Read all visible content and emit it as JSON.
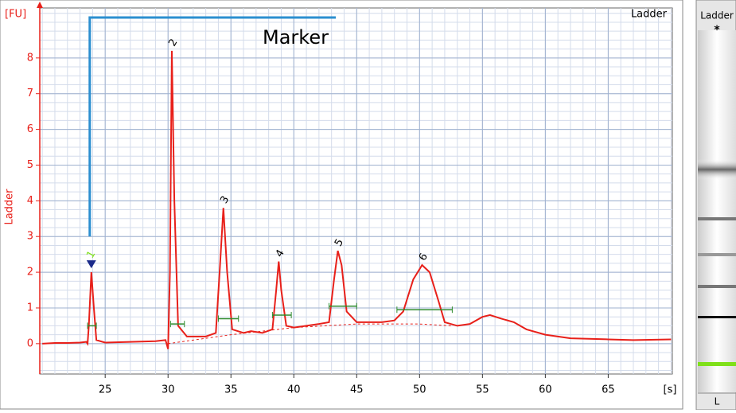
{
  "chart_data": {
    "type": "line",
    "title": "Ladder",
    "y_label": "Ladder",
    "y_unit": "[FU]",
    "x_unit": "[s]",
    "annotation": "Marker",
    "xlim": [
      19.8,
      70.1
    ],
    "ylim": [
      -0.85,
      9.4
    ],
    "xticks": [
      25,
      30,
      35,
      40,
      45,
      50,
      55,
      60,
      65
    ],
    "yticks": [
      0,
      1,
      2,
      3,
      4,
      5,
      6,
      7,
      8
    ],
    "grid": true,
    "color": "#e8201a",
    "x": [
      20,
      21,
      22,
      23,
      23.5,
      23.6,
      23.7,
      23.9,
      24.1,
      24.3,
      25,
      27,
      29,
      29.8,
      30.0,
      30.15,
      30.3,
      30.5,
      30.8,
      31.5,
      33,
      33.8,
      34.1,
      34.4,
      34.7,
      35.1,
      36,
      36.6,
      37.5,
      38.3,
      38.6,
      38.8,
      39.0,
      39.4,
      40,
      41,
      42,
      42.8,
      43.2,
      43.5,
      43.8,
      44.2,
      45,
      46,
      47,
      48,
      48.7,
      49.5,
      50.2,
      50.8,
      51.5,
      52,
      53,
      54,
      55,
      55.6,
      56.5,
      57.5,
      58.5,
      60,
      62,
      65,
      67,
      70
    ],
    "values": [
      0.0,
      0.02,
      0.02,
      0.03,
      0.05,
      0.0,
      0.5,
      2.0,
      1.0,
      0.1,
      0.03,
      0.05,
      0.07,
      0.1,
      -0.15,
      2,
      8.2,
      4,
      0.5,
      0.2,
      0.2,
      0.3,
      2.0,
      3.8,
      2.0,
      0.4,
      0.3,
      0.35,
      0.3,
      0.4,
      1.5,
      2.3,
      1.5,
      0.5,
      0.45,
      0.5,
      0.55,
      0.6,
      1.8,
      2.6,
      2.2,
      0.9,
      0.6,
      0.6,
      0.6,
      0.65,
      0.9,
      1.8,
      2.2,
      2.0,
      1.2,
      0.6,
      0.5,
      0.55,
      0.75,
      0.8,
      0.7,
      0.6,
      0.4,
      0.25,
      0.15,
      0.12,
      0.1,
      0.12
    ],
    "baseline": {
      "x": [
        30,
        35,
        40,
        45,
        50,
        52.5
      ],
      "values": [
        0.0,
        0.25,
        0.45,
        0.55,
        0.55,
        0.5
      ]
    },
    "peaks": [
      {
        "label": "1",
        "x": 23.9,
        "y": 2.0
      },
      {
        "label": "2",
        "x": 30.3,
        "y": 8.2
      },
      {
        "label": "3",
        "x": 34.4,
        "y": 3.8
      },
      {
        "label": "4",
        "x": 38.8,
        "y": 2.3
      },
      {
        "label": "5",
        "x": 43.5,
        "y": 2.6
      },
      {
        "label": "6",
        "x": 50.2,
        "y": 2.2
      }
    ],
    "integration_bars": [
      {
        "start": 23.6,
        "end": 24.3,
        "y": 0.5
      },
      {
        "start": 30.2,
        "end": 31.3,
        "y": 0.55
      },
      {
        "start": 34.0,
        "end": 35.6,
        "y": 0.7
      },
      {
        "start": 38.3,
        "end": 39.8,
        "y": 0.8
      },
      {
        "start": 42.8,
        "end": 45.0,
        "y": 1.05
      },
      {
        "start": 48.2,
        "end": 52.6,
        "y": 0.95
      }
    ]
  },
  "gel": {
    "title": "Ladder",
    "lane": "L"
  }
}
